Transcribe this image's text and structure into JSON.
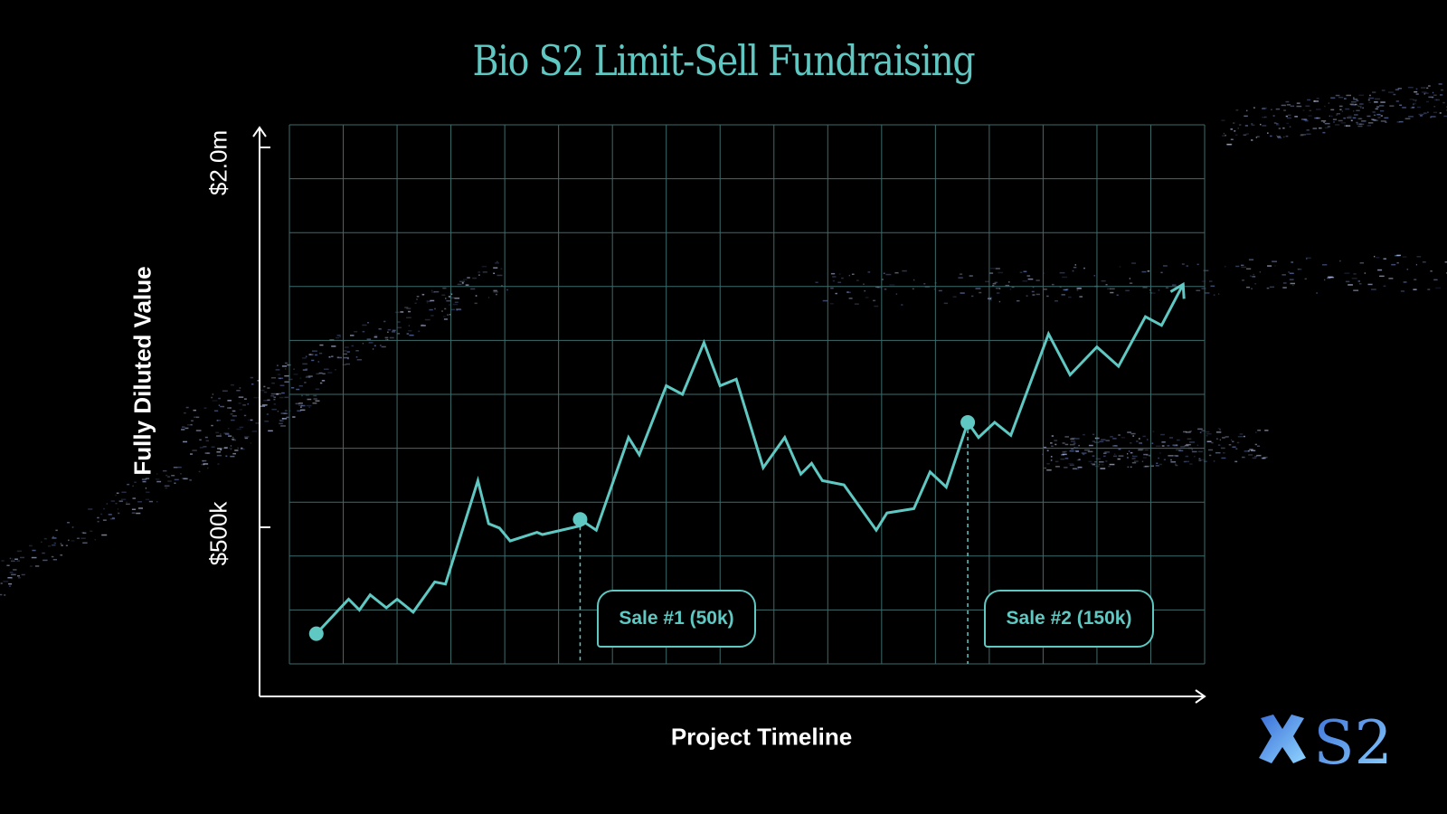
{
  "colors": {
    "accent": "#5fc8c2",
    "grid": "#3d6b6a",
    "axis": "#ffffff",
    "background": "#000000"
  },
  "chart_data": {
    "type": "line",
    "title": "Bio S2 Limit-Sell Fundraising",
    "xlabel": "Project Timeline",
    "ylabel": "Fully Diluted Value",
    "y_tick_labels": [
      "$2.0m",
      "$500k"
    ],
    "grid": true,
    "series": [
      {
        "values": [
          [
            0.0,
            0.14
          ],
          [
            0.6,
            0.3
          ],
          [
            0.8,
            0.25
          ],
          [
            1.0,
            0.32
          ],
          [
            1.3,
            0.26
          ],
          [
            1.5,
            0.3
          ],
          [
            1.8,
            0.24
          ],
          [
            2.2,
            0.38
          ],
          [
            2.4,
            0.37
          ],
          [
            3.0,
            0.85
          ],
          [
            3.2,
            0.65
          ],
          [
            3.4,
            0.63
          ],
          [
            3.6,
            0.57
          ],
          [
            4.1,
            0.61
          ],
          [
            4.2,
            0.6
          ],
          [
            4.9,
            0.64
          ],
          [
            4.9,
            0.67
          ],
          [
            5.2,
            0.62
          ],
          [
            5.8,
            1.05
          ],
          [
            6.0,
            0.97
          ],
          [
            6.5,
            1.29
          ],
          [
            6.8,
            1.25
          ],
          [
            7.2,
            1.49
          ],
          [
            7.5,
            1.29
          ],
          [
            7.8,
            1.32
          ],
          [
            8.3,
            0.91
          ],
          [
            8.7,
            1.05
          ],
          [
            9.0,
            0.88
          ],
          [
            9.2,
            0.93
          ],
          [
            9.4,
            0.85
          ],
          [
            9.8,
            0.83
          ],
          [
            10.4,
            0.62
          ],
          [
            10.6,
            0.7
          ],
          [
            11.1,
            0.72
          ],
          [
            11.4,
            0.89
          ],
          [
            11.7,
            0.82
          ],
          [
            12.1,
            1.12
          ],
          [
            12.3,
            1.05
          ],
          [
            12.6,
            1.12
          ],
          [
            12.9,
            1.06
          ],
          [
            13.6,
            1.53
          ],
          [
            14.0,
            1.34
          ],
          [
            14.5,
            1.47
          ],
          [
            14.9,
            1.38
          ],
          [
            15.4,
            1.61
          ],
          [
            15.7,
            1.57
          ],
          [
            16.1,
            1.76
          ]
        ]
      }
    ],
    "markers": [
      {
        "x": 0.0,
        "y": 0.14
      },
      {
        "x": 4.9,
        "y": 0.67
      },
      {
        "x": 12.1,
        "y": 1.12
      }
    ],
    "annotations": [
      {
        "label": "Sale #1 (50k)",
        "x": 4.9
      },
      {
        "label": "Sale #2 (150k)",
        "x": 12.1
      }
    ]
  },
  "logo": {
    "text": "S2"
  }
}
